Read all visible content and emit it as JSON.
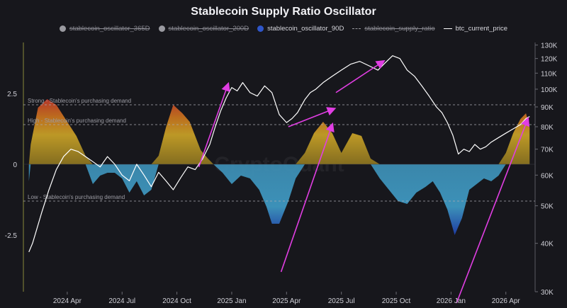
{
  "chart_data": {
    "type": "area",
    "title": "Stablecoin Supply Ratio Oscillator",
    "legend": [
      {
        "name": "stablecoin_oscillator_365D",
        "marker": "dot",
        "color": "#9a9aa0",
        "active": false
      },
      {
        "name": "stablecoin_oscillator_200D",
        "marker": "dot",
        "color": "#9a9aa0",
        "active": false
      },
      {
        "name": "stablecoin_oscillator_90D",
        "marker": "dot",
        "color": "#2f56c9",
        "active": true
      },
      {
        "name": "stablecoin_supply_ratio",
        "marker": "dashed",
        "color": "#9a9aa0",
        "active": false
      },
      {
        "name": "btc_current_price",
        "marker": "line",
        "color": "#ffffff",
        "active": true
      }
    ],
    "x_ticks": [
      "2024 Apr",
      "2024 Jul",
      "2024 Oct",
      "2025 Jan",
      "2025 Apr",
      "2025 Jul",
      "2025 Oct",
      "2026 Jan",
      "2026 Apr"
    ],
    "x_tick_months": [
      3,
      6,
      9,
      12,
      15,
      18,
      21,
      24,
      27
    ],
    "x_range_months": [
      0.6,
      28.6
    ],
    "y_left": {
      "ticks": [
        "2.5",
        "0",
        "-2.5"
      ],
      "tick_values": [
        2.5,
        0,
        -2.5
      ],
      "range": [
        -4.5,
        4.3
      ]
    },
    "y_right": {
      "scale": "log",
      "ticks": [
        "130K",
        "120K",
        "110K",
        "100K",
        "90K",
        "80K",
        "70K",
        "60K",
        "50K",
        "40K",
        "30K"
      ],
      "tick_values": [
        130000,
        120000,
        110000,
        100000,
        90000,
        80000,
        70000,
        60000,
        50000,
        40000,
        30000
      ],
      "range": [
        30000,
        132000
      ]
    },
    "reference_lines": [
      {
        "label": "Strong - Stablecoin's purchasing demand",
        "value": 2.1
      },
      {
        "label": "High - Stablecoin's purchasing demand",
        "value": 1.4
      },
      {
        "label": "Low - Stablecoin's purchasing demand",
        "value": -1.3
      }
    ],
    "watermark": "CryptoQuant",
    "oscillator_90D": {
      "t": [
        0.9,
        1.0,
        1.4,
        1.9,
        2.4,
        3.0,
        3.5,
        4.0,
        4.4,
        4.8,
        5.2,
        5.6,
        6.0,
        6.4,
        6.8,
        7.2,
        7.6,
        8.0,
        8.4,
        8.8,
        9.3,
        9.7,
        10.0,
        10.3,
        10.7,
        11.0,
        11.5,
        12.0,
        12.5,
        13.0,
        13.5,
        13.9,
        14.2,
        14.6,
        15.1,
        15.5,
        16.0,
        16.5,
        17.0,
        17.5,
        18.0,
        18.6,
        19.1,
        19.6,
        20.1,
        20.6,
        21.1,
        21.6,
        22.1,
        22.6,
        23.0,
        23.4,
        23.8,
        24.2,
        24.6,
        25.0,
        25.4,
        25.8,
        26.2,
        26.6,
        27.0,
        27.4,
        27.8,
        28.1,
        28.3
      ],
      "v": [
        -0.6,
        0.7,
        2.0,
        2.3,
        2.1,
        1.5,
        1.0,
        0.3,
        -0.7,
        -0.4,
        -0.3,
        -0.3,
        -0.5,
        -1.0,
        -0.6,
        -1.1,
        -0.9,
        0.3,
        1.3,
        2.1,
        1.8,
        1.5,
        1.0,
        0.5,
        0.2,
        0.0,
        -0.3,
        -0.7,
        -0.4,
        -0.5,
        -0.9,
        -1.5,
        -2.1,
        -2.1,
        -1.3,
        -0.5,
        0.4,
        1.1,
        1.5,
        1.1,
        0.4,
        1.1,
        1.0,
        0.2,
        -0.5,
        -0.9,
        -1.3,
        -1.4,
        -1.0,
        -0.8,
        -0.6,
        -1.0,
        -1.6,
        -2.5,
        -1.9,
        -0.9,
        -0.7,
        -0.5,
        -0.6,
        -0.4,
        0.4,
        1.1,
        1.6,
        1.8,
        1.3
      ]
    },
    "btc_current_price": {
      "t": [
        0.9,
        1.1,
        1.3,
        1.6,
        2.0,
        2.4,
        2.8,
        3.2,
        3.6,
        4.0,
        4.4,
        4.8,
        5.2,
        5.6,
        6.0,
        6.4,
        6.8,
        7.2,
        7.6,
        8.0,
        8.4,
        8.8,
        9.2,
        9.6,
        10.0,
        10.4,
        10.8,
        11.1,
        11.4,
        11.7,
        12.0,
        12.3,
        12.6,
        13.0,
        13.4,
        13.8,
        14.2,
        14.6,
        15.0,
        15.3,
        15.6,
        16.0,
        16.3,
        16.6,
        17.0,
        17.5,
        18.0,
        18.5,
        19.0,
        19.5,
        20.0,
        20.4,
        20.8,
        21.2,
        21.6,
        22.0,
        22.4,
        22.8,
        23.2,
        23.5,
        23.8,
        24.1,
        24.4,
        24.7,
        25.0,
        25.3,
        25.6,
        25.9,
        26.2,
        26.6,
        27.0,
        27.4,
        27.8,
        28.1,
        28.3
      ],
      "v": [
        38000,
        40000,
        43000,
        48000,
        55000,
        62000,
        67000,
        70000,
        69000,
        67000,
        65000,
        63000,
        67000,
        64000,
        60000,
        58000,
        64000,
        60000,
        56000,
        61000,
        58000,
        55000,
        59000,
        63000,
        62000,
        66000,
        72000,
        80000,
        88000,
        95000,
        101000,
        99000,
        104000,
        98000,
        96000,
        102000,
        98000,
        86000,
        82000,
        84000,
        87000,
        94000,
        98000,
        100000,
        104000,
        108000,
        112000,
        116000,
        118000,
        115000,
        112000,
        117000,
        122000,
        120000,
        112000,
        108000,
        102000,
        96000,
        90000,
        87000,
        82000,
        76000,
        68000,
        70000,
        69000,
        72000,
        70000,
        71000,
        73000,
        75000,
        77000,
        79000,
        81000,
        84000,
        85000
      ]
    },
    "trend_arrows": [
      {
        "from_t": 10.2,
        "from_price": 63000,
        "to_t": 11.8,
        "to_price": 103000
      },
      {
        "from_t": 15.1,
        "from_price": 80000,
        "to_t": 17.6,
        "to_price": 89000
      },
      {
        "from_t": 17.7,
        "from_price": 98000,
        "to_t": 20.3,
        "to_price": 118000
      },
      {
        "from_t": 14.7,
        "from_osc": -3.8,
        "to_t": 17.5,
        "to_osc": 1.4
      },
      {
        "from_t": 24.3,
        "from_osc": -4.9,
        "to_t": 28.2,
        "to_osc": 1.6
      }
    ]
  }
}
